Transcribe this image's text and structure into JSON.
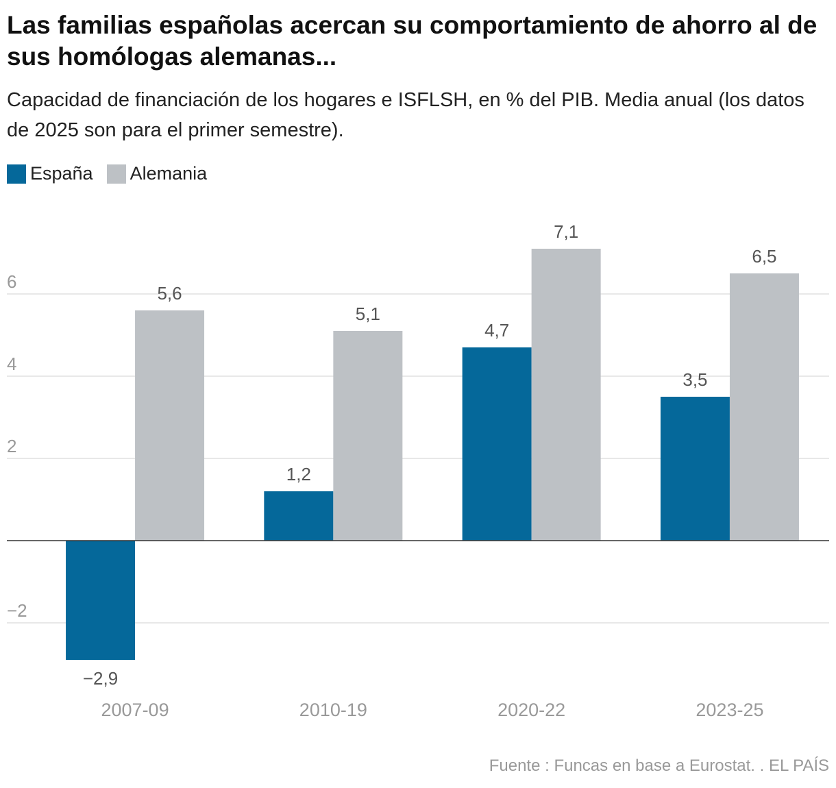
{
  "header": {
    "title": "Las familias españolas acercan su comportamiento de ahorro al de sus homólogas alemanas...",
    "subtitle": "Capacidad de financiación de los hogares e ISFLSH, en % del PIB. Media anual (los datos de 2025 son para el primer semestre)."
  },
  "footer": {
    "source": "Fuente : Funcas en base a Eurostat. . EL PAÍS"
  },
  "chart_data": {
    "type": "bar",
    "title": "",
    "xlabel": "",
    "ylabel": "",
    "categories": [
      "2007-09",
      "2010-19",
      "2020-22",
      "2023-25"
    ],
    "series": [
      {
        "name": "España",
        "color": "#05689a",
        "values": [
          -2.9,
          1.2,
          4.7,
          3.5
        ],
        "labels": [
          "−2,9",
          "1,2",
          "4,7",
          "3,5"
        ]
      },
      {
        "name": "Alemania",
        "color": "#bdc1c5",
        "values": [
          5.6,
          5.1,
          7.1,
          6.5
        ],
        "labels": [
          "5,6",
          "5,1",
          "7,1",
          "6,5"
        ]
      }
    ],
    "ylim": [
      -3.2,
      7.1
    ],
    "yticks": [
      -2,
      2,
      4,
      6
    ],
    "ytick_labels": [
      "−2",
      "2",
      "4",
      "6"
    ],
    "grid": true,
    "legend": "top-left"
  }
}
